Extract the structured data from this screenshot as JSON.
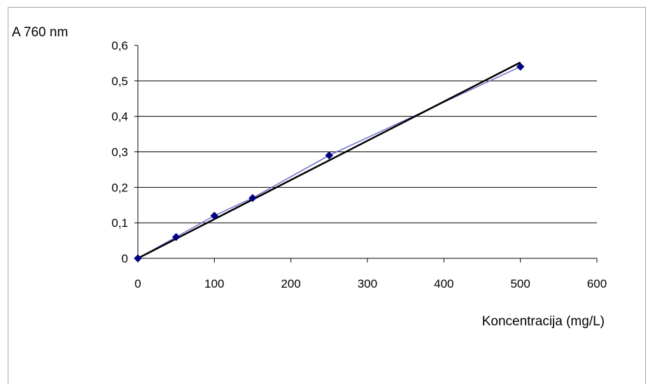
{
  "chart_data": {
    "type": "scatter",
    "title": "",
    "xlabel": "Koncentracija (mg/L)",
    "ylabel": "A 760 nm",
    "xlim": [
      0,
      600
    ],
    "ylim": [
      0,
      0.6
    ],
    "xticks": [
      0,
      100,
      200,
      300,
      400,
      500,
      600
    ],
    "yticks": [
      0,
      0.1,
      0.2,
      0.3,
      0.4,
      0.5,
      0.6
    ],
    "xtick_labels": [
      "0",
      "100",
      "200",
      "300",
      "400",
      "500",
      "600"
    ],
    "ytick_labels": [
      "0",
      "0,1",
      "0,2",
      "0,3",
      "0,4",
      "0,5",
      "0,6"
    ],
    "grid": "horizontal",
    "series": [
      {
        "x": [
          0,
          50,
          100,
          150,
          250,
          500
        ],
        "y": [
          0,
          0.06,
          0.12,
          0.17,
          0.29,
          0.54
        ],
        "color": "#000080",
        "line_color": "#6a6ad0",
        "marker": "diamond"
      }
    ],
    "trendline": {
      "type": "linear",
      "x": [
        0,
        500
      ],
      "y": [
        0,
        0.552
      ],
      "color": "#000000"
    }
  }
}
